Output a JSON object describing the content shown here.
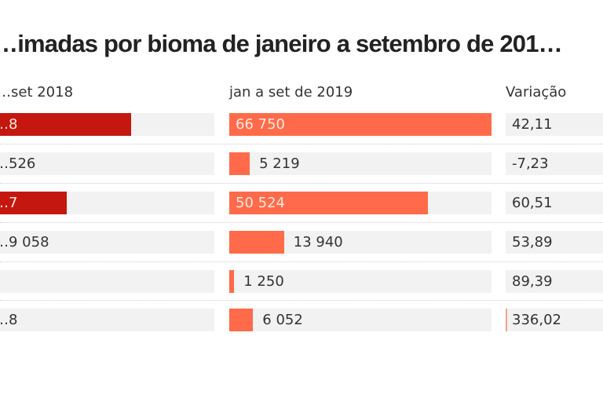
{
  "chart_data": {
    "type": "table",
    "title": "…imadas por bioma de janeiro a setembro de 201…",
    "columns": [
      {
        "key": "y2018",
        "header": "…set 2018",
        "color": "#c4170f"
      },
      {
        "key": "y2019",
        "header": "jan a set de 2019",
        "color": "#ff6b4a"
      },
      {
        "key": "variation",
        "header": "Variação",
        "color": "#ff6b4a"
      }
    ],
    "rows": [
      {
        "y2018_label": "…8",
        "y2018_fraction": 0.637,
        "y2019": 66750,
        "y2019_label": "66 750",
        "variation": 42.11,
        "variation_label": "42,11"
      },
      {
        "y2018_label": "…526",
        "y2018_fraction": 0.0,
        "y2019": 5219,
        "y2019_label": "5 219",
        "variation": -7.23,
        "variation_label": "-7,23"
      },
      {
        "y2018_label": "…7",
        "y2018_fraction": 0.359,
        "y2019": 50524,
        "y2019_label": "50 524",
        "variation": 60.51,
        "variation_label": "60,51"
      },
      {
        "y2018_label": "…9 058",
        "y2018_fraction": 0.0,
        "y2019": 13940,
        "y2019_label": "13 940",
        "variation": 53.89,
        "variation_label": "53,89"
      },
      {
        "y2018_label": "",
        "y2018_fraction": 0.0,
        "y2019": 1250,
        "y2019_label": "1 250",
        "variation": 89.39,
        "variation_label": "89,39"
      },
      {
        "y2018_label": "…8",
        "y2018_fraction": 0.0,
        "y2019": 6052,
        "y2019_label": "6 052",
        "variation": 336.02,
        "variation_label": "336,02"
      }
    ],
    "y2019_max": 66750,
    "variation_visible_bar_rows": [
      5
    ]
  }
}
